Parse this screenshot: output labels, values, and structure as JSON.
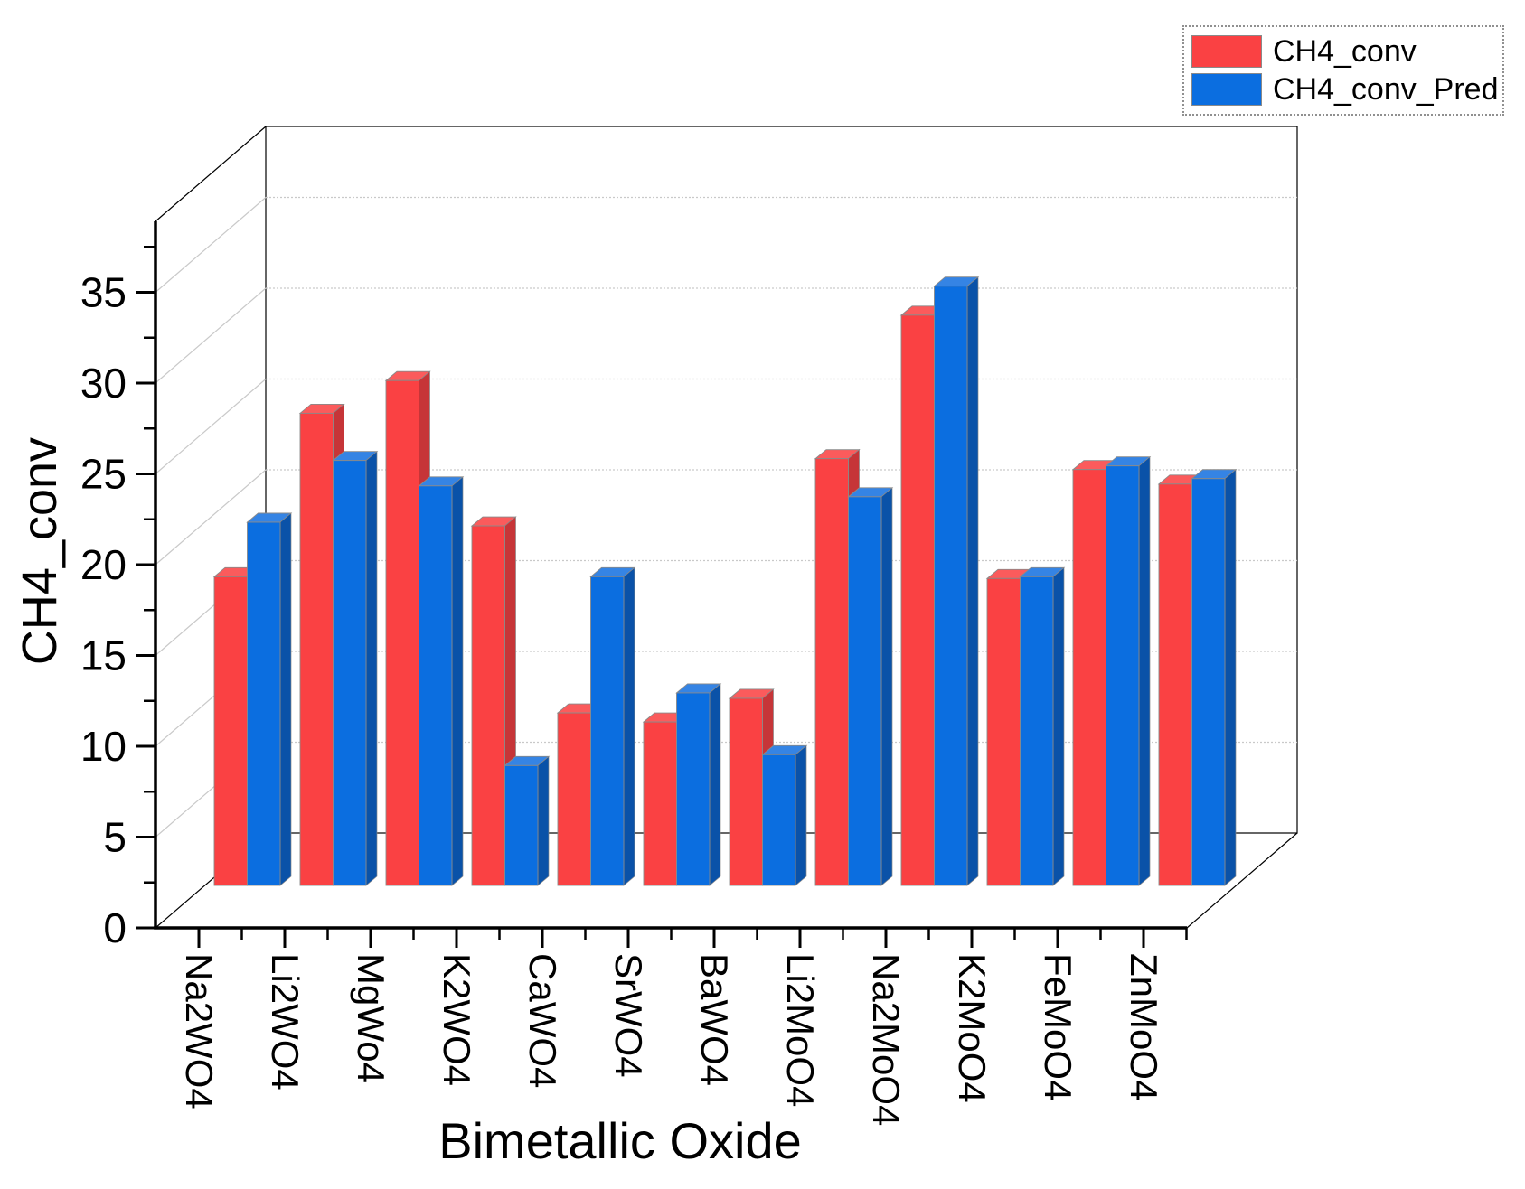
{
  "title": {
    "x_axis": "Bimetallic Oxide",
    "y_axis": "CH4_conv"
  },
  "legend": {
    "items": [
      {
        "label": "CH4_conv",
        "color": "#FA4143"
      },
      {
        "label": "CH4_conv_Pred",
        "color": "#0B6EE0"
      }
    ]
  },
  "axes": {
    "y": {
      "min": 0,
      "max": 38,
      "tick_step": 5,
      "minor_step": 2.5,
      "tick_labels": [
        "0",
        "5",
        "10",
        "15",
        "20",
        "25",
        "30",
        "35"
      ]
    },
    "x": {
      "label_rotation_deg": 90
    }
  },
  "chart_data": {
    "type": "bar",
    "projection": "3d-oblique",
    "title": "",
    "xlabel": "Bimetallic Oxide",
    "ylabel": "CH4_conv",
    "ylim": [
      0,
      38
    ],
    "grid": true,
    "legend_position": "top-right",
    "categories": [
      "Na2WO4",
      "Li2WO4",
      "MgWo4",
      "K2WO4",
      "CaWO4",
      "SrWO4",
      "BaWO4",
      "Li2MoO4",
      "Na2MoO4",
      "K2MoO4",
      "FeMoO4",
      "ZnMoO4"
    ],
    "series": [
      {
        "name": "CH4_conv",
        "color": "#FA4143",
        "color_top": "#FB5B5C",
        "color_side": "#C63538",
        "values": [
          17.0,
          26.0,
          27.8,
          19.8,
          9.5,
          9.0,
          10.3,
          23.5,
          31.4,
          16.9,
          22.9,
          22.1
        ]
      },
      {
        "name": "CH4_conv_Pred",
        "color": "#0B6EE0",
        "color_top": "#3584E4",
        "color_side": "#0A52A8",
        "values": [
          20.0,
          23.4,
          22.0,
          6.6,
          17.0,
          10.6,
          7.2,
          21.4,
          33.0,
          17.0,
          23.1,
          22.4
        ]
      }
    ],
    "colors": {
      "axis": "#000000",
      "grid": "#c9c9c9",
      "background": "#ffffff"
    }
  }
}
